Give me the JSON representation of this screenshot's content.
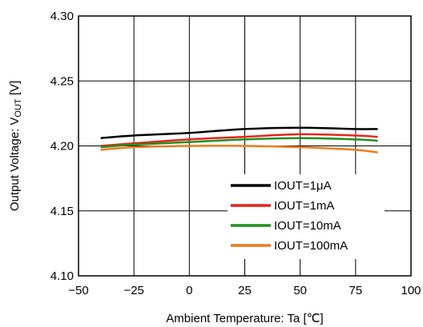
{
  "chart_data": {
    "type": "line",
    "title": "",
    "xlabel": "Ambient Temperature: Ta [℃]",
    "ylabel": "Output Voltage: V",
    "ylabel_sub": "OUT",
    "ylabel_unit": " [V]",
    "xlim": [
      -50,
      100
    ],
    "ylim": [
      4.1,
      4.3
    ],
    "x_ticks": [
      -50,
      -25,
      0,
      25,
      50,
      75,
      100
    ],
    "x_tick_labels": [
      "−50",
      "−25",
      "0",
      "25",
      "50",
      "75",
      "100"
    ],
    "y_ticks": [
      4.1,
      4.15,
      4.2,
      4.25,
      4.3
    ],
    "y_tick_labels": [
      "4.10",
      "4.15",
      "4.20",
      "4.25",
      "4.30"
    ],
    "grid": true,
    "legend_position": "bottom-right",
    "series": [
      {
        "name": "IOUT=1μA",
        "color": "#000000",
        "x": [
          -40,
          -25,
          0,
          25,
          50,
          75,
          85
        ],
        "y": [
          4.206,
          4.208,
          4.21,
          4.213,
          4.214,
          4.213,
          4.213
        ]
      },
      {
        "name": "IOUT=1mA",
        "color": "#e8231c",
        "x": [
          -40,
          -25,
          0,
          25,
          50,
          75,
          85
        ],
        "y": [
          4.2,
          4.202,
          4.205,
          4.207,
          4.209,
          4.208,
          4.207
        ]
      },
      {
        "name": "IOUT=10mA",
        "color": "#1f8f1f",
        "x": [
          -40,
          -25,
          0,
          25,
          50,
          75,
          85
        ],
        "y": [
          4.199,
          4.201,
          4.203,
          4.205,
          4.206,
          4.205,
          4.204
        ]
      },
      {
        "name": "IOUT=100mA",
        "color": "#f07a1a",
        "x": [
          -40,
          -25,
          0,
          25,
          50,
          75,
          85
        ],
        "y": [
          4.197,
          4.199,
          4.2,
          4.2,
          4.199,
          4.197,
          4.195
        ]
      }
    ]
  }
}
